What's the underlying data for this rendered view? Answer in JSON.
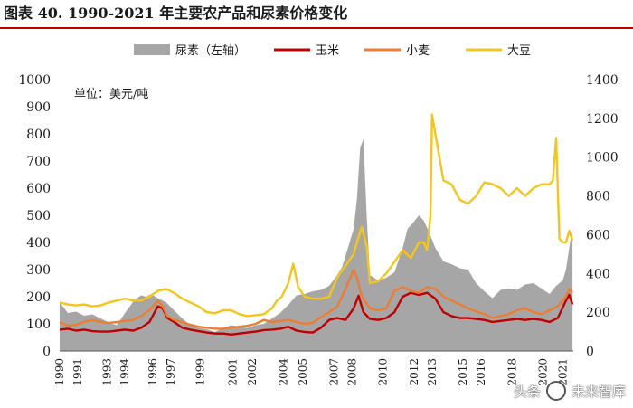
{
  "title": "图表 40. 1990-2021 年主要农产品和尿素价格变化",
  "watermark": {
    "source": "头条",
    "brand": "未来智库",
    "icon": "wechat-logo-icon"
  },
  "colors": {
    "urea": "#a6a6a6",
    "corn": "#c00000",
    "wheat": "#ed7d31",
    "soy": "#f5c518",
    "title_rule": "#c00000"
  },
  "chart_data": {
    "type": "line",
    "title": "1990-2021 年主要农产品和尿素价格变化",
    "unit_note": "单位：美元/吨",
    "legend_position": "top",
    "y_left": {
      "min": 0,
      "max": 1000,
      "ticks": [
        0,
        100,
        200,
        300,
        400,
        500,
        600,
        700,
        800,
        900,
        1000
      ]
    },
    "y_right": {
      "min": 0,
      "max": 1400,
      "ticks": [
        0,
        200,
        400,
        600,
        800,
        1000,
        1200,
        1400
      ]
    },
    "x_tick_labels": [
      "1990",
      "1991",
      "1993",
      "1994",
      "1996",
      "1997",
      "1999",
      "2001",
      "2002",
      "2004",
      "2005",
      "2007",
      "2008",
      "2010",
      "2012",
      "2013",
      "2015",
      "2016",
      "2018",
      "2020",
      "2021"
    ],
    "x_tick_years": [
      1990,
      1991.1,
      1992.9,
      1994,
      1995.7,
      1996.8,
      1998.6,
      2000.6,
      2001.8,
      2003.7,
      2004.9,
      2006.8,
      2007.9,
      2009.8,
      2011.7,
      2012.8,
      2014.7,
      2015.8,
      2017.7,
      2019.6,
      2020.8
    ],
    "series": [
      {
        "name": "尿素（左轴）",
        "type": "area",
        "axis": "left",
        "x": [
          1990,
          1990.5,
          1991,
          1991.5,
          1992,
          1992.5,
          1993,
          1993.5,
          1994,
          1994.3,
          1994.6,
          1995,
          1995.3,
          1995.6,
          1996,
          1996.5,
          1997,
          1997.5,
          1998,
          1998.5,
          1999,
          1999.5,
          2000,
          2000.5,
          2001,
          2001.5,
          2002,
          2002.5,
          2003,
          2003.5,
          2004,
          2004.5,
          2005,
          2005.5,
          2006,
          2006.5,
          2007,
          2007.3,
          2007.6,
          2008,
          2008.2,
          2008.4,
          2008.6,
          2008.8,
          2009,
          2009.5,
          2010,
          2010.5,
          2011,
          2011.3,
          2011.6,
          2012,
          2012.3,
          2012.6,
          2013,
          2013.5,
          2014,
          2014.5,
          2015,
          2015.5,
          2016,
          2016.5,
          2017,
          2017.5,
          2018,
          2018.5,
          2019,
          2019.5,
          2020,
          2020.4,
          2020.8,
          2021,
          2021.2,
          2021.4
        ],
        "values": [
          180,
          140,
          145,
          130,
          135,
          120,
          105,
          95,
          140,
          165,
          190,
          205,
          200,
          210,
          195,
          180,
          150,
          120,
          95,
          85,
          80,
          70,
          85,
          95,
          90,
          85,
          95,
          100,
          120,
          140,
          170,
          205,
          210,
          220,
          225,
          240,
          280,
          310,
          370,
          450,
          560,
          750,
          780,
          500,
          280,
          260,
          270,
          290,
          380,
          450,
          470,
          500,
          480,
          440,
          380,
          330,
          320,
          305,
          300,
          250,
          220,
          195,
          225,
          230,
          225,
          245,
          250,
          230,
          210,
          240,
          260,
          300,
          380,
          460
        ]
      },
      {
        "name": "玉米",
        "type": "line",
        "axis": "right",
        "x": [
          1990,
          1990.5,
          1991,
          1991.5,
          1992,
          1992.5,
          1993,
          1993.5,
          1994,
          1994.5,
          1995,
          1995.5,
          1996,
          1996.3,
          1996.6,
          1997,
          1997.5,
          1998,
          1998.5,
          1999,
          1999.5,
          2000,
          2000.5,
          2001,
          2001.5,
          2002,
          2002.5,
          2003,
          2003.5,
          2004,
          2004.5,
          2005,
          2005.5,
          2006,
          2006.5,
          2007,
          2007.5,
          2008,
          2008.3,
          2008.6,
          2009,
          2009.5,
          2010,
          2010.5,
          2011,
          2011.5,
          2012,
          2012.5,
          2013,
          2013.5,
          2014,
          2014.5,
          2015,
          2015.5,
          2016,
          2016.5,
          2017,
          2017.5,
          2018,
          2018.5,
          2019,
          2019.5,
          2020,
          2020.5,
          2021,
          2021.2,
          2021.4
        ],
        "values": [
          110,
          115,
          105,
          110,
          102,
          100,
          100,
          105,
          110,
          105,
          120,
          150,
          230,
          220,
          170,
          150,
          120,
          110,
          102,
          95,
          90,
          90,
          85,
          90,
          95,
          100,
          108,
          110,
          115,
          125,
          105,
          98,
          95,
          120,
          160,
          170,
          160,
          220,
          285,
          200,
          165,
          160,
          170,
          200,
          280,
          300,
          290,
          300,
          270,
          200,
          180,
          170,
          170,
          165,
          160,
          150,
          155,
          160,
          165,
          160,
          165,
          160,
          150,
          170,
          260,
          290,
          240
        ]
      },
      {
        "name": "小麦",
        "type": "line",
        "axis": "right",
        "x": [
          1990,
          1990.5,
          1991,
          1991.5,
          1992,
          1992.5,
          1993,
          1993.5,
          1994,
          1994.5,
          1995,
          1995.5,
          1996,
          1996.3,
          1996.6,
          1997,
          1997.5,
          1998,
          1998.5,
          1999,
          1999.5,
          2000,
          2000.5,
          2001,
          2001.5,
          2002,
          2002.5,
          2003,
          2003.5,
          2004,
          2004.5,
          2005,
          2005.5,
          2006,
          2006.5,
          2007,
          2007.5,
          2008,
          2008.2,
          2008.5,
          2009,
          2009.5,
          2010,
          2010.5,
          2011,
          2011.5,
          2012,
          2012.5,
          2013,
          2013.5,
          2014,
          2014.5,
          2015,
          2015.5,
          2016,
          2016.5,
          2017,
          2017.5,
          2018,
          2018.5,
          2019,
          2019.5,
          2020,
          2020.5,
          2021,
          2021.2,
          2021.4
        ],
        "values": [
          150,
          130,
          135,
          150,
          160,
          150,
          145,
          150,
          155,
          160,
          180,
          210,
          260,
          230,
          180,
          160,
          150,
          135,
          125,
          120,
          115,
          115,
          120,
          125,
          130,
          140,
          160,
          150,
          155,
          160,
          150,
          140,
          145,
          175,
          200,
          230,
          320,
          420,
          380,
          280,
          220,
          210,
          220,
          310,
          330,
          310,
          300,
          330,
          320,
          280,
          260,
          240,
          220,
          205,
          190,
          170,
          180,
          190,
          210,
          220,
          200,
          190,
          210,
          230,
          280,
          320,
          300
        ]
      },
      {
        "name": "大豆",
        "type": "line",
        "axis": "right",
        "x": [
          1990,
          1990.5,
          1991,
          1991.5,
          1992,
          1992.5,
          1993,
          1993.5,
          1994,
          1994.5,
          1995,
          1995.5,
          1996,
          1996.5,
          1997,
          1997.5,
          1998,
          1998.5,
          1999,
          1999.5,
          2000,
          2000.5,
          2001,
          2001.5,
          2002,
          2002.5,
          2003,
          2003.3,
          2003.6,
          2004,
          2004.3,
          2004.6,
          2005,
          2005.5,
          2006,
          2006.5,
          2007,
          2007.5,
          2008,
          2008.2,
          2008.5,
          2008.8,
          2009,
          2009.5,
          2010,
          2010.5,
          2011,
          2011.5,
          2012,
          2012.3,
          2012.5,
          2012.7,
          2012.8,
          2013,
          2013.5,
          2014,
          2014.5,
          2015,
          2015.5,
          2016,
          2016.5,
          2017,
          2017.5,
          2018,
          2018.5,
          2019,
          2019.5,
          2020,
          2020.2,
          2020.4,
          2020.6,
          2020.8,
          2021,
          2021.2,
          2021.4
        ],
        "values": [
          250,
          240,
          235,
          240,
          230,
          235,
          250,
          260,
          270,
          260,
          260,
          280,
          310,
          320,
          300,
          270,
          250,
          230,
          200,
          195,
          210,
          210,
          190,
          180,
          185,
          190,
          220,
          260,
          280,
          350,
          450,
          330,
          280,
          270,
          270,
          280,
          380,
          440,
          500,
          560,
          640,
          540,
          350,
          360,
          400,
          460,
          520,
          480,
          560,
          560,
          520,
          700,
          1220,
          1120,
          880,
          860,
          780,
          760,
          800,
          870,
          860,
          840,
          800,
          840,
          800,
          840,
          860,
          860,
          880,
          1100,
          580,
          560,
          560,
          620,
          570
        ]
      }
    ]
  }
}
